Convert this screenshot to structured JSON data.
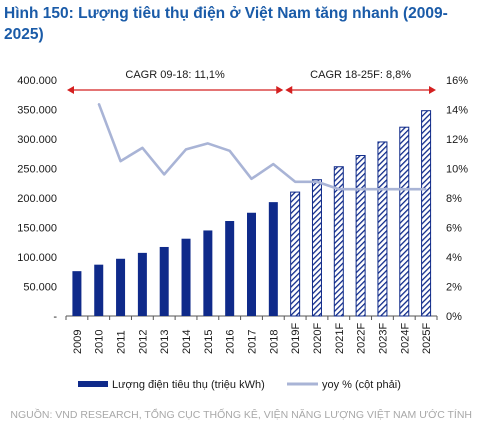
{
  "title": "Hình 150: Lượng tiêu thụ điện ở Việt Nam tăng nhanh (2009-2025)",
  "source": "NGUỒN: VND RESEARCH, TỔNG CỤC THỐNG KÊ, VIỆN NĂNG LƯỢNG VIỆT NAM ƯỚC TÍNH",
  "colors": {
    "bar": "#0f2a8a",
    "line": "#a9b4d6",
    "arrow": "#d42020",
    "title": "#1a5ba8"
  },
  "chart_data": {
    "type": "bar",
    "categories": [
      "2009",
      "2010",
      "2011",
      "2012",
      "2013",
      "2014",
      "2015",
      "2016",
      "2017",
      "2018",
      "2019F",
      "2020F",
      "2021F",
      "2022F",
      "2023F",
      "2024F",
      "2025F"
    ],
    "forecast_from_index": 10,
    "series": [
      {
        "name": "Lượng điện tiêu thụ (triệu kWh)",
        "type": "bar",
        "axis": "left",
        "values": [
          76000,
          87000,
          97000,
          107000,
          117000,
          131000,
          145000,
          161000,
          175000,
          193000,
          210000,
          231000,
          253000,
          272000,
          295000,
          320000,
          348000
        ]
      },
      {
        "name": "yoy % (cột phải)",
        "type": "line",
        "axis": "right",
        "values": [
          null,
          14.4,
          10.5,
          11.4,
          9.6,
          11.3,
          11.7,
          11.2,
          9.3,
          10.3,
          9.1,
          9.1,
          8.6,
          8.6,
          8.6,
          8.6,
          8.6
        ]
      }
    ],
    "y_left": {
      "ylim": [
        0,
        400000
      ],
      "ticks": [
        "-",
        "50.000",
        "100.000",
        "150.000",
        "200.000",
        "250.000",
        "300.000",
        "350.000",
        "400.000"
      ]
    },
    "y_right": {
      "ylim": [
        0,
        16
      ],
      "ticks": [
        "0%",
        "2%",
        "4%",
        "6%",
        "8%",
        "10%",
        "12%",
        "14%",
        "16%"
      ]
    },
    "annotations": [
      {
        "text": "CAGR 09-18: 11,1%",
        "from": "2009",
        "to": "2018"
      },
      {
        "text": "CAGR 18-25F: 8,8%",
        "from": "2019F",
        "to": "2025F"
      }
    ],
    "legend_position": "bottom",
    "grid": false
  }
}
